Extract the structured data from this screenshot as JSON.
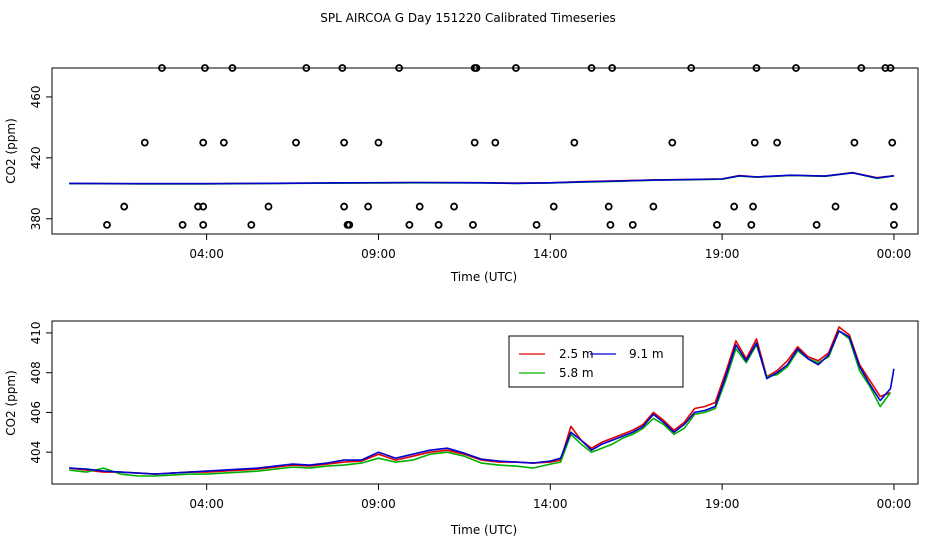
{
  "title": "SPL AIRCOA G  Day 151220  Calibrated Timeseries",
  "colors": {
    "2.5 m": "#e00000",
    "5.8 m": "#00b000",
    "9.1 m": "#0000d0",
    "calibration": "#000000"
  },
  "chart_data": [
    {
      "type": "scatter",
      "title": "SPL AIRCOA G  Day 151220  Calibrated Timeseries",
      "xlabel": "Time (UTC)",
      "ylabel": "CO2 (ppm)",
      "x_ticks": [
        "04:00",
        "09:00",
        "14:00",
        "19:00",
        "00:00"
      ],
      "x_tick_hours": [
        4,
        9,
        14,
        19,
        24
      ],
      "xlim_hours": [
        -0.5,
        24.7
      ],
      "y_ticks": [
        380,
        420,
        460
      ],
      "ylim": [
        370,
        479
      ],
      "grid": false,
      "calibration_points": {
        "x_hours": [
          1.1,
          1.6,
          2.2,
          2.7,
          3.3,
          3.75,
          3.9,
          3.9,
          3.9,
          3.95,
          4.5,
          4.75,
          5.3,
          5.8,
          6.6,
          6.9,
          7.95,
          8.0,
          8.0,
          8.1,
          8.15,
          8.7,
          9.0,
          9.6,
          9.9,
          10.2,
          10.75,
          11.2,
          11.75,
          11.8,
          11.8,
          11.85,
          12.4,
          13.0,
          13.6,
          14.1,
          14.7,
          15.2,
          15.7,
          15.75,
          15.8,
          16.4,
          17.0,
          17.55,
          18.1,
          18.85,
          19.35,
          19.85,
          19.9,
          19.95,
          20.0,
          20.6,
          21.15,
          21.75,
          22.3,
          22.85,
          23.05,
          23.75,
          23.9,
          23.95,
          24.0,
          24.0
        ]
      },
      "calibration_points_y": [
        376,
        388,
        430,
        479,
        376,
        388,
        388,
        376,
        430,
        479,
        430,
        479,
        376,
        388,
        430,
        479,
        479,
        430,
        388,
        376,
        376,
        388,
        430,
        479,
        376,
        388,
        376,
        388,
        376,
        430,
        479,
        479,
        430,
        479,
        376,
        388,
        430,
        479,
        388,
        376,
        479,
        376,
        388,
        430,
        479,
        376,
        388,
        376,
        388,
        430,
        479,
        430,
        479,
        376,
        388,
        430,
        479,
        479,
        479,
        430,
        388,
        376
      ],
      "series": [
        {
          "name": "2.5 m",
          "x": [
            0,
            2,
            4,
            6,
            8,
            10,
            12,
            13,
            14,
            15,
            16,
            17,
            18,
            19,
            19.5,
            20,
            21,
            22,
            22.8,
            23.5,
            24
          ],
          "values": [
            403.2,
            403.0,
            403.0,
            403.3,
            403.5,
            403.7,
            403.7,
            403.4,
            403.6,
            404.4,
            404.9,
            405.5,
            405.8,
            406.2,
            408.4,
            407.5,
            408.5,
            408.0,
            410.3,
            407.0,
            408.2
          ]
        },
        {
          "name": "5.8 m",
          "x": [
            0,
            2,
            4,
            6,
            8,
            10,
            12,
            13,
            14,
            15,
            16,
            17,
            18,
            19,
            19.5,
            20,
            21,
            22,
            22.8,
            23.5,
            24
          ],
          "values": [
            403.1,
            402.9,
            402.9,
            403.2,
            403.4,
            403.6,
            403.5,
            403.2,
            403.5,
            404.1,
            404.6,
            405.3,
            405.6,
            406.0,
            408.0,
            407.3,
            408.4,
            407.9,
            410.2,
            406.5,
            408.2
          ]
        },
        {
          "name": "9.1 m",
          "x": [
            0,
            2,
            4,
            6,
            8,
            10,
            12,
            13,
            14,
            15,
            16,
            17,
            18,
            19,
            19.5,
            20,
            21,
            22,
            22.8,
            23.5,
            24
          ],
          "values": [
            403.2,
            403.0,
            403.0,
            403.3,
            403.6,
            403.8,
            403.6,
            403.3,
            403.6,
            404.3,
            404.8,
            405.4,
            405.7,
            406.1,
            408.2,
            407.4,
            408.6,
            408.0,
            410.2,
            406.8,
            408.2
          ]
        }
      ]
    },
    {
      "type": "line",
      "xlabel": "Time (UTC)",
      "ylabel": "CO2 (ppm)",
      "x_ticks": [
        "04:00",
        "09:00",
        "14:00",
        "19:00",
        "00:00"
      ],
      "x_tick_hours": [
        4,
        9,
        14,
        19,
        24
      ],
      "xlim_hours": [
        -0.5,
        24.7
      ],
      "y_ticks": [
        404,
        406,
        408,
        410
      ],
      "ylim": [
        402.4,
        410.6
      ],
      "grid": false,
      "legend": {
        "placement": "top-right",
        "entries": [
          "2.5 m",
          "5.8 m",
          "9.1 m"
        ]
      },
      "series": [
        {
          "name": "2.5 m",
          "x": [
            0,
            0.5,
            1,
            1.5,
            2,
            2.5,
            3,
            3.5,
            4,
            4.5,
            5,
            5.5,
            6,
            6.5,
            7,
            7.5,
            8,
            8.5,
            9,
            9.5,
            10,
            10.5,
            11,
            11.5,
            12,
            12.5,
            13,
            13.5,
            14,
            14.3,
            14.6,
            14.9,
            15.2,
            15.5,
            15.8,
            16.1,
            16.4,
            16.7,
            17.0,
            17.3,
            17.6,
            17.9,
            18.2,
            18.5,
            18.8,
            19.1,
            19.4,
            19.7,
            20.0,
            20.3,
            20.6,
            20.9,
            21.2,
            21.5,
            21.8,
            22.1,
            22.4,
            22.7,
            23.0,
            23.3,
            23.6,
            23.9
          ],
          "values": [
            403.2,
            403.1,
            403.0,
            403.0,
            402.95,
            402.9,
            402.95,
            403.0,
            403.0,
            403.05,
            403.1,
            403.15,
            403.25,
            403.35,
            403.3,
            403.4,
            403.5,
            403.55,
            403.9,
            403.6,
            403.8,
            404.0,
            404.1,
            403.9,
            403.6,
            403.5,
            403.5,
            403.45,
            403.5,
            403.6,
            405.3,
            404.6,
            404.2,
            404.5,
            404.7,
            404.9,
            405.1,
            405.4,
            406.0,
            405.6,
            405.1,
            405.5,
            406.2,
            406.3,
            406.5,
            408.0,
            409.6,
            408.7,
            409.7,
            407.8,
            408.1,
            408.6,
            409.3,
            408.8,
            408.6,
            409.0,
            410.3,
            409.9,
            408.4,
            407.6,
            406.8,
            407.0
          ]
        },
        {
          "name": "5.8 m",
          "x": [
            0,
            0.5,
            1,
            1.5,
            2,
            2.5,
            3,
            3.5,
            4,
            4.5,
            5,
            5.5,
            6,
            6.5,
            7,
            7.5,
            8,
            8.5,
            9,
            9.5,
            10,
            10.5,
            11,
            11.5,
            12,
            12.5,
            13,
            13.5,
            14,
            14.3,
            14.6,
            14.9,
            15.2,
            15.5,
            15.8,
            16.1,
            16.4,
            16.7,
            17.0,
            17.3,
            17.6,
            17.9,
            18.2,
            18.5,
            18.8,
            19.1,
            19.4,
            19.7,
            20.0,
            20.3,
            20.6,
            20.9,
            21.2,
            21.5,
            21.8,
            22.1,
            22.4,
            22.7,
            23.0,
            23.3,
            23.6,
            23.9
          ],
          "values": [
            403.1,
            403.0,
            403.2,
            402.9,
            402.8,
            402.8,
            402.85,
            402.9,
            402.9,
            402.95,
            403.0,
            403.05,
            403.15,
            403.25,
            403.2,
            403.3,
            403.35,
            403.45,
            403.7,
            403.5,
            403.6,
            403.9,
            404.0,
            403.8,
            403.45,
            403.35,
            403.3,
            403.2,
            403.4,
            403.5,
            404.9,
            404.4,
            404.0,
            404.2,
            404.4,
            404.7,
            404.9,
            405.2,
            405.7,
            405.4,
            404.9,
            405.2,
            405.9,
            406.0,
            406.2,
            407.6,
            409.2,
            408.5,
            409.4,
            407.8,
            407.9,
            408.3,
            409.1,
            408.7,
            408.5,
            408.8,
            410.1,
            409.7,
            408.1,
            407.3,
            406.3,
            407.0
          ]
        },
        {
          "name": "9.1 m",
          "x": [
            0,
            0.5,
            1,
            1.5,
            2,
            2.5,
            3,
            3.5,
            4,
            4.5,
            5,
            5.5,
            6,
            6.5,
            7,
            7.5,
            8,
            8.5,
            9,
            9.5,
            10,
            10.5,
            11,
            11.5,
            12,
            12.5,
            13,
            13.5,
            14,
            14.3,
            14.6,
            14.9,
            15.2,
            15.5,
            15.8,
            16.1,
            16.4,
            16.7,
            17.0,
            17.3,
            17.6,
            17.9,
            18.2,
            18.5,
            18.8,
            19.1,
            19.4,
            19.7,
            20.0,
            20.3,
            20.6,
            20.9,
            21.2,
            21.5,
            21.8,
            22.1,
            22.4,
            22.7,
            23.0,
            23.3,
            23.6,
            23.9,
            24.0
          ],
          "values": [
            403.2,
            403.15,
            403.05,
            403.0,
            402.95,
            402.9,
            402.95,
            403.0,
            403.05,
            403.1,
            403.15,
            403.2,
            403.3,
            403.4,
            403.35,
            403.45,
            403.6,
            403.6,
            404.0,
            403.7,
            403.9,
            404.1,
            404.2,
            403.95,
            403.65,
            403.55,
            403.5,
            403.45,
            403.55,
            403.7,
            405.0,
            404.6,
            404.1,
            404.4,
            404.6,
            404.8,
            405.0,
            405.3,
            405.9,
            405.5,
            405.0,
            405.4,
            406.0,
            406.1,
            406.3,
            407.8,
            409.4,
            408.6,
            409.5,
            407.7,
            408.0,
            408.4,
            409.2,
            408.7,
            408.4,
            408.9,
            410.1,
            409.8,
            408.3,
            407.4,
            406.6,
            407.2,
            408.2
          ]
        }
      ]
    }
  ]
}
